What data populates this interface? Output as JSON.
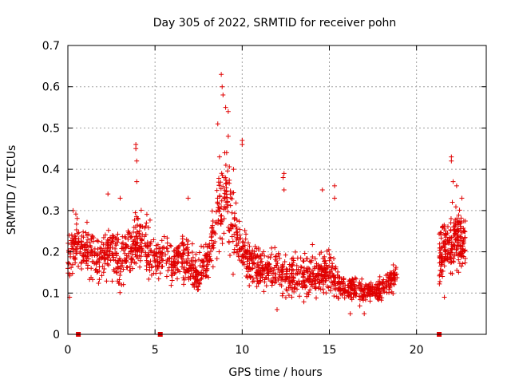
{
  "chart_data": {
    "type": "scatter",
    "title": "Day 305 of 2022, SRMTID for receiver pohn",
    "xlabel": "GPS time / hours",
    "ylabel": "SRMTID / TECUs",
    "xlim": [
      0,
      24
    ],
    "ylim": [
      0,
      0.7
    ],
    "xticks": [
      0,
      5,
      10,
      15,
      20
    ],
    "xtick_labels": [
      "0",
      "5",
      "10",
      "15",
      "20"
    ],
    "yticks": [
      0,
      0.1,
      0.2,
      0.3,
      0.4,
      0.5,
      0.6,
      0.7
    ],
    "ytick_labels": [
      "0",
      "0.1",
      "0.2",
      "0.3",
      "0.4",
      "0.5",
      "0.6",
      "0.7"
    ],
    "grid": true,
    "marker": "+",
    "color": "#e00000",
    "gap_markers_x": [
      0.6,
      5.3,
      21.3
    ],
    "envelope": {
      "description": "approximate trend of dense point cloud (center value and spread in TECU per hour)",
      "x": [
        0.0,
        0.5,
        1.0,
        1.5,
        2.0,
        2.5,
        3.0,
        3.5,
        4.0,
        4.5,
        5.0,
        5.5,
        6.0,
        6.5,
        7.0,
        7.5,
        8.0,
        8.5,
        9.0,
        9.5,
        10.0,
        10.5,
        11.0,
        11.5,
        12.0,
        12.5,
        13.0,
        13.5,
        14.0,
        14.5,
        15.0,
        15.5,
        16.0,
        16.5,
        17.0,
        17.5,
        18.0,
        18.5,
        18.9
      ],
      "center": [
        0.19,
        0.22,
        0.2,
        0.19,
        0.18,
        0.21,
        0.17,
        0.2,
        0.23,
        0.22,
        0.18,
        0.2,
        0.17,
        0.19,
        0.17,
        0.14,
        0.18,
        0.28,
        0.35,
        0.26,
        0.2,
        0.18,
        0.16,
        0.15,
        0.16,
        0.14,
        0.15,
        0.14,
        0.14,
        0.15,
        0.15,
        0.12,
        0.11,
        0.11,
        0.1,
        0.1,
        0.11,
        0.13,
        0.14
      ],
      "spread": [
        0.06,
        0.06,
        0.05,
        0.05,
        0.05,
        0.06,
        0.05,
        0.06,
        0.07,
        0.06,
        0.06,
        0.05,
        0.05,
        0.05,
        0.05,
        0.04,
        0.05,
        0.09,
        0.1,
        0.08,
        0.06,
        0.05,
        0.05,
        0.05,
        0.05,
        0.05,
        0.05,
        0.05,
        0.05,
        0.05,
        0.05,
        0.04,
        0.03,
        0.03,
        0.03,
        0.03,
        0.03,
        0.03,
        0.03
      ]
    },
    "late_segment": {
      "x": [
        21.3,
        21.8,
        22.3,
        22.8
      ],
      "center": [
        0.19,
        0.22,
        0.23,
        0.21
      ],
      "spread": [
        0.06,
        0.07,
        0.07,
        0.06
      ]
    },
    "peaks": [
      {
        "x": 0.3,
        "y": 0.3
      },
      {
        "x": 2.3,
        "y": 0.34
      },
      {
        "x": 3.0,
        "y": 0.33
      },
      {
        "x": 3.9,
        "y": 0.46
      },
      {
        "x": 3.9,
        "y": 0.45
      },
      {
        "x": 3.95,
        "y": 0.42
      },
      {
        "x": 3.95,
        "y": 0.37
      },
      {
        "x": 6.9,
        "y": 0.33
      },
      {
        "x": 8.6,
        "y": 0.51
      },
      {
        "x": 8.8,
        "y": 0.63
      },
      {
        "x": 8.85,
        "y": 0.6
      },
      {
        "x": 8.9,
        "y": 0.58
      },
      {
        "x": 9.05,
        "y": 0.55
      },
      {
        "x": 9.2,
        "y": 0.54
      },
      {
        "x": 9.2,
        "y": 0.48
      },
      {
        "x": 9.0,
        "y": 0.44
      },
      {
        "x": 8.7,
        "y": 0.43
      },
      {
        "x": 10.0,
        "y": 0.47
      },
      {
        "x": 10.0,
        "y": 0.46
      },
      {
        "x": 9.5,
        "y": 0.4
      },
      {
        "x": 12.4,
        "y": 0.39
      },
      {
        "x": 12.35,
        "y": 0.38
      },
      {
        "x": 12.4,
        "y": 0.35
      },
      {
        "x": 14.6,
        "y": 0.35
      },
      {
        "x": 15.3,
        "y": 0.36
      },
      {
        "x": 15.3,
        "y": 0.33
      },
      {
        "x": 22.0,
        "y": 0.43
      },
      {
        "x": 22.0,
        "y": 0.42
      },
      {
        "x": 22.1,
        "y": 0.37
      },
      {
        "x": 22.3,
        "y": 0.36
      },
      {
        "x": 22.6,
        "y": 0.33
      },
      {
        "x": 0.1,
        "y": 0.09
      },
      {
        "x": 12.0,
        "y": 0.06
      },
      {
        "x": 16.2,
        "y": 0.05
      },
      {
        "x": 17.0,
        "y": 0.05
      },
      {
        "x": 21.6,
        "y": 0.09
      }
    ]
  }
}
